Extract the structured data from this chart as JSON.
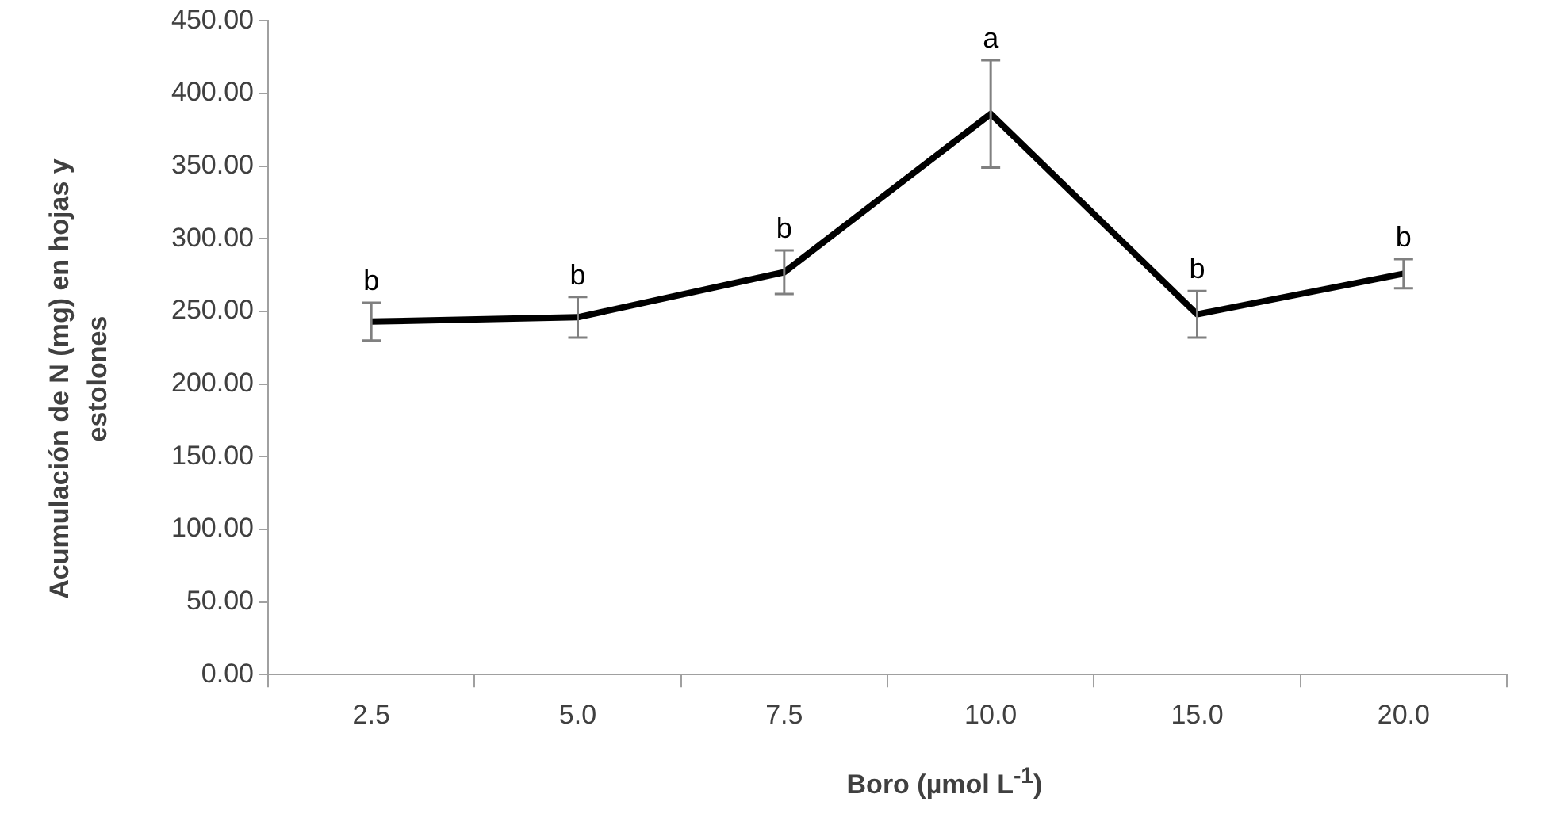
{
  "chart_data": {
    "type": "line",
    "xlabel": "Boro (µmol L$^{-1}$)",
    "ylabel": "Acumulación de N (mg) en hojas y estolones",
    "categories": [
      "2.5",
      "5.0",
      "7.5",
      "10.0",
      "15.0",
      "20.0"
    ],
    "series": [
      {
        "color": "#000000",
        "values": [
          243,
          246,
          277,
          386,
          248,
          276
        ],
        "errors": [
          13,
          14,
          15,
          37,
          16,
          10
        ]
      }
    ],
    "ylim": [
      0,
      450
    ],
    "yticks": [
      {
        "value": 0,
        "label": "0.00"
      },
      {
        "value": 50,
        "label": "50.00"
      },
      {
        "value": 100,
        "label": "100.00"
      },
      {
        "value": 150,
        "label": "150.00"
      },
      {
        "value": 200,
        "label": "200.00"
      },
      {
        "value": 250,
        "label": "250.00"
      },
      {
        "value": 300,
        "label": "300.00"
      },
      {
        "value": 350,
        "label": "350.00"
      },
      {
        "value": 400,
        "label": "400.00"
      },
      {
        "value": 450,
        "label": "450.00"
      }
    ],
    "annotations": [
      {
        "text": "b",
        "x": "2.5",
        "y": 256
      },
      {
        "text": "b",
        "x": "5.0",
        "y": 260
      },
      {
        "text": "b",
        "x": "7.5",
        "y": 292
      },
      {
        "text": "a",
        "x": "10.0",
        "y": 423
      },
      {
        "text": "b",
        "x": "15.0",
        "y": 264
      },
      {
        "text": "b",
        "x": "20.0",
        "y": 286
      }
    ],
    "grid": false,
    "legend": false,
    "marker": "none",
    "line_style": "solid"
  }
}
